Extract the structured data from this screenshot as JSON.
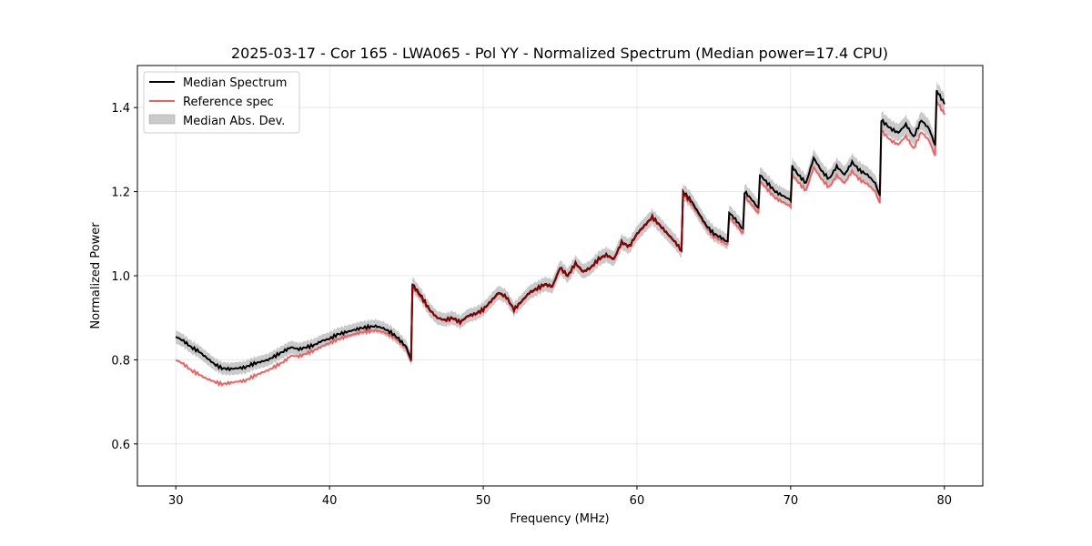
{
  "chart_data": {
    "type": "line",
    "title": "2025-03-17 - Cor 165 - LWA065 - Pol YY - Normalized Spectrum (Median power=17.4 CPU)",
    "xlabel": "Frequency (MHz)",
    "ylabel": "Normalized Power",
    "xlim": [
      27.5,
      82.5
    ],
    "ylim": [
      0.5,
      1.5
    ],
    "xticks": [
      30,
      40,
      50,
      60,
      70,
      80
    ],
    "yticks": [
      0.6,
      0.8,
      1.0,
      1.2,
      1.4
    ],
    "xtick_labels": [
      "30",
      "40",
      "50",
      "60",
      "70",
      "80"
    ],
    "ytick_labels": [
      "0.6",
      "0.8",
      "1.0",
      "1.2",
      "1.4"
    ],
    "grid": true,
    "legend_position": "top-left",
    "colors": {
      "median": "#000000",
      "reference": "#f06060",
      "reference_overlap": "#8b0000",
      "band": "#b4b4b4"
    },
    "series": [
      {
        "name": "Median Spectrum",
        "x": [
          30.0,
          30.5,
          31.0,
          31.5,
          32.0,
          32.5,
          33.0,
          33.5,
          34.0,
          34.5,
          35.0,
          35.5,
          36.0,
          36.5,
          37.0,
          37.5,
          38.0,
          38.5,
          39.0,
          39.5,
          40.0,
          40.5,
          41.0,
          41.5,
          42.0,
          42.5,
          43.0,
          43.5,
          44.0,
          44.5,
          45.0,
          45.3,
          45.4,
          46.0,
          46.5,
          47.0,
          47.5,
          48.0,
          48.5,
          49.0,
          49.5,
          50.0,
          50.5,
          51.0,
          51.5,
          52.0,
          52.5,
          53.0,
          53.5,
          54.0,
          54.5,
          55.0,
          55.5,
          56.0,
          56.5,
          57.0,
          57.5,
          58.0,
          58.5,
          59.0,
          59.5,
          60.0,
          60.5,
          61.0,
          61.5,
          62.0,
          62.5,
          62.9,
          63.0,
          63.5,
          64.0,
          64.5,
          65.0,
          65.5,
          65.9,
          66.0,
          66.5,
          66.9,
          67.0,
          67.5,
          67.9,
          68.0,
          68.5,
          69.0,
          69.5,
          70.0,
          70.1,
          70.5,
          71.0,
          71.5,
          72.0,
          72.5,
          73.0,
          73.5,
          74.0,
          74.5,
          75.0,
          75.5,
          75.8,
          75.9,
          76.5,
          77.0,
          77.5,
          78.0,
          78.5,
          79.0,
          79.4,
          79.5,
          80.0
        ],
        "values": [
          0.855,
          0.845,
          0.83,
          0.82,
          0.805,
          0.79,
          0.78,
          0.778,
          0.78,
          0.782,
          0.79,
          0.795,
          0.8,
          0.81,
          0.82,
          0.83,
          0.825,
          0.83,
          0.835,
          0.845,
          0.85,
          0.86,
          0.865,
          0.87,
          0.875,
          0.878,
          0.88,
          0.875,
          0.865,
          0.85,
          0.83,
          0.8,
          0.98,
          0.95,
          0.92,
          0.9,
          0.895,
          0.9,
          0.89,
          0.905,
          0.91,
          0.92,
          0.94,
          0.96,
          0.95,
          0.92,
          0.94,
          0.96,
          0.97,
          0.98,
          0.975,
          1.02,
          1.0,
          1.03,
          1.01,
          1.02,
          1.04,
          1.05,
          1.04,
          1.08,
          1.07,
          1.1,
          1.12,
          1.14,
          1.12,
          1.1,
          1.08,
          1.06,
          1.2,
          1.18,
          1.15,
          1.12,
          1.1,
          1.09,
          1.08,
          1.15,
          1.13,
          1.11,
          1.2,
          1.18,
          1.16,
          1.24,
          1.22,
          1.2,
          1.19,
          1.18,
          1.26,
          1.24,
          1.22,
          1.28,
          1.25,
          1.23,
          1.26,
          1.24,
          1.27,
          1.25,
          1.24,
          1.22,
          1.19,
          1.37,
          1.35,
          1.34,
          1.36,
          1.33,
          1.37,
          1.35,
          1.31,
          1.44,
          1.41
        ]
      },
      {
        "name": "Reference spec",
        "x": [
          30.0,
          30.5,
          31.0,
          31.5,
          32.0,
          32.5,
          33.0,
          33.5,
          34.0,
          34.5,
          35.0,
          35.5,
          36.0,
          36.5,
          37.0,
          37.5,
          38.0,
          38.5,
          39.0,
          39.5,
          40.0,
          40.5,
          41.0,
          41.5,
          42.0,
          42.5,
          43.0,
          43.5,
          44.0,
          44.5,
          45.0,
          45.3,
          45.4,
          46.0,
          46.5,
          47.0,
          47.5,
          48.0,
          48.5,
          49.0,
          49.5,
          50.0,
          50.5,
          51.0,
          51.5,
          52.0,
          52.5,
          53.0,
          53.5,
          54.0,
          54.5,
          55.0,
          55.5,
          56.0,
          56.5,
          57.0,
          57.5,
          58.0,
          58.5,
          59.0,
          59.5,
          60.0,
          60.5,
          61.0,
          61.5,
          62.0,
          62.5,
          62.9,
          63.0,
          63.5,
          64.0,
          64.5,
          65.0,
          65.5,
          65.9,
          66.0,
          66.5,
          66.9,
          67.0,
          67.5,
          67.9,
          68.0,
          68.5,
          69.0,
          69.5,
          70.0,
          70.1,
          70.5,
          71.0,
          71.5,
          72.0,
          72.5,
          73.0,
          73.5,
          74.0,
          74.5,
          75.0,
          75.5,
          75.8,
          75.9,
          76.5,
          77.0,
          77.5,
          78.0,
          78.5,
          79.0,
          79.4,
          79.5,
          80.0
        ],
        "values": [
          0.8,
          0.79,
          0.775,
          0.765,
          0.755,
          0.748,
          0.742,
          0.745,
          0.748,
          0.75,
          0.76,
          0.768,
          0.775,
          0.785,
          0.795,
          0.81,
          0.808,
          0.815,
          0.822,
          0.832,
          0.84,
          0.848,
          0.855,
          0.86,
          0.865,
          0.868,
          0.87,
          0.866,
          0.858,
          0.845,
          0.825,
          0.795,
          0.975,
          0.945,
          0.918,
          0.9,
          0.893,
          0.898,
          0.888,
          0.903,
          0.908,
          0.918,
          0.938,
          0.958,
          0.948,
          0.918,
          0.938,
          0.958,
          0.968,
          0.978,
          0.973,
          1.018,
          0.998,
          1.028,
          1.008,
          1.018,
          1.038,
          1.048,
          1.038,
          1.078,
          1.068,
          1.098,
          1.118,
          1.138,
          1.118,
          1.098,
          1.078,
          1.058,
          1.195,
          1.172,
          1.145,
          1.115,
          1.093,
          1.083,
          1.073,
          1.14,
          1.12,
          1.1,
          1.188,
          1.168,
          1.148,
          1.225,
          1.205,
          1.185,
          1.175,
          1.165,
          1.24,
          1.222,
          1.202,
          1.258,
          1.23,
          1.21,
          1.238,
          1.22,
          1.248,
          1.228,
          1.218,
          1.2,
          1.172,
          1.345,
          1.322,
          1.312,
          1.332,
          1.302,
          1.342,
          1.322,
          1.285,
          1.415,
          1.385
        ]
      }
    ],
    "band": {
      "name": "Median Abs. Dev.",
      "half_width": 0.018
    }
  }
}
